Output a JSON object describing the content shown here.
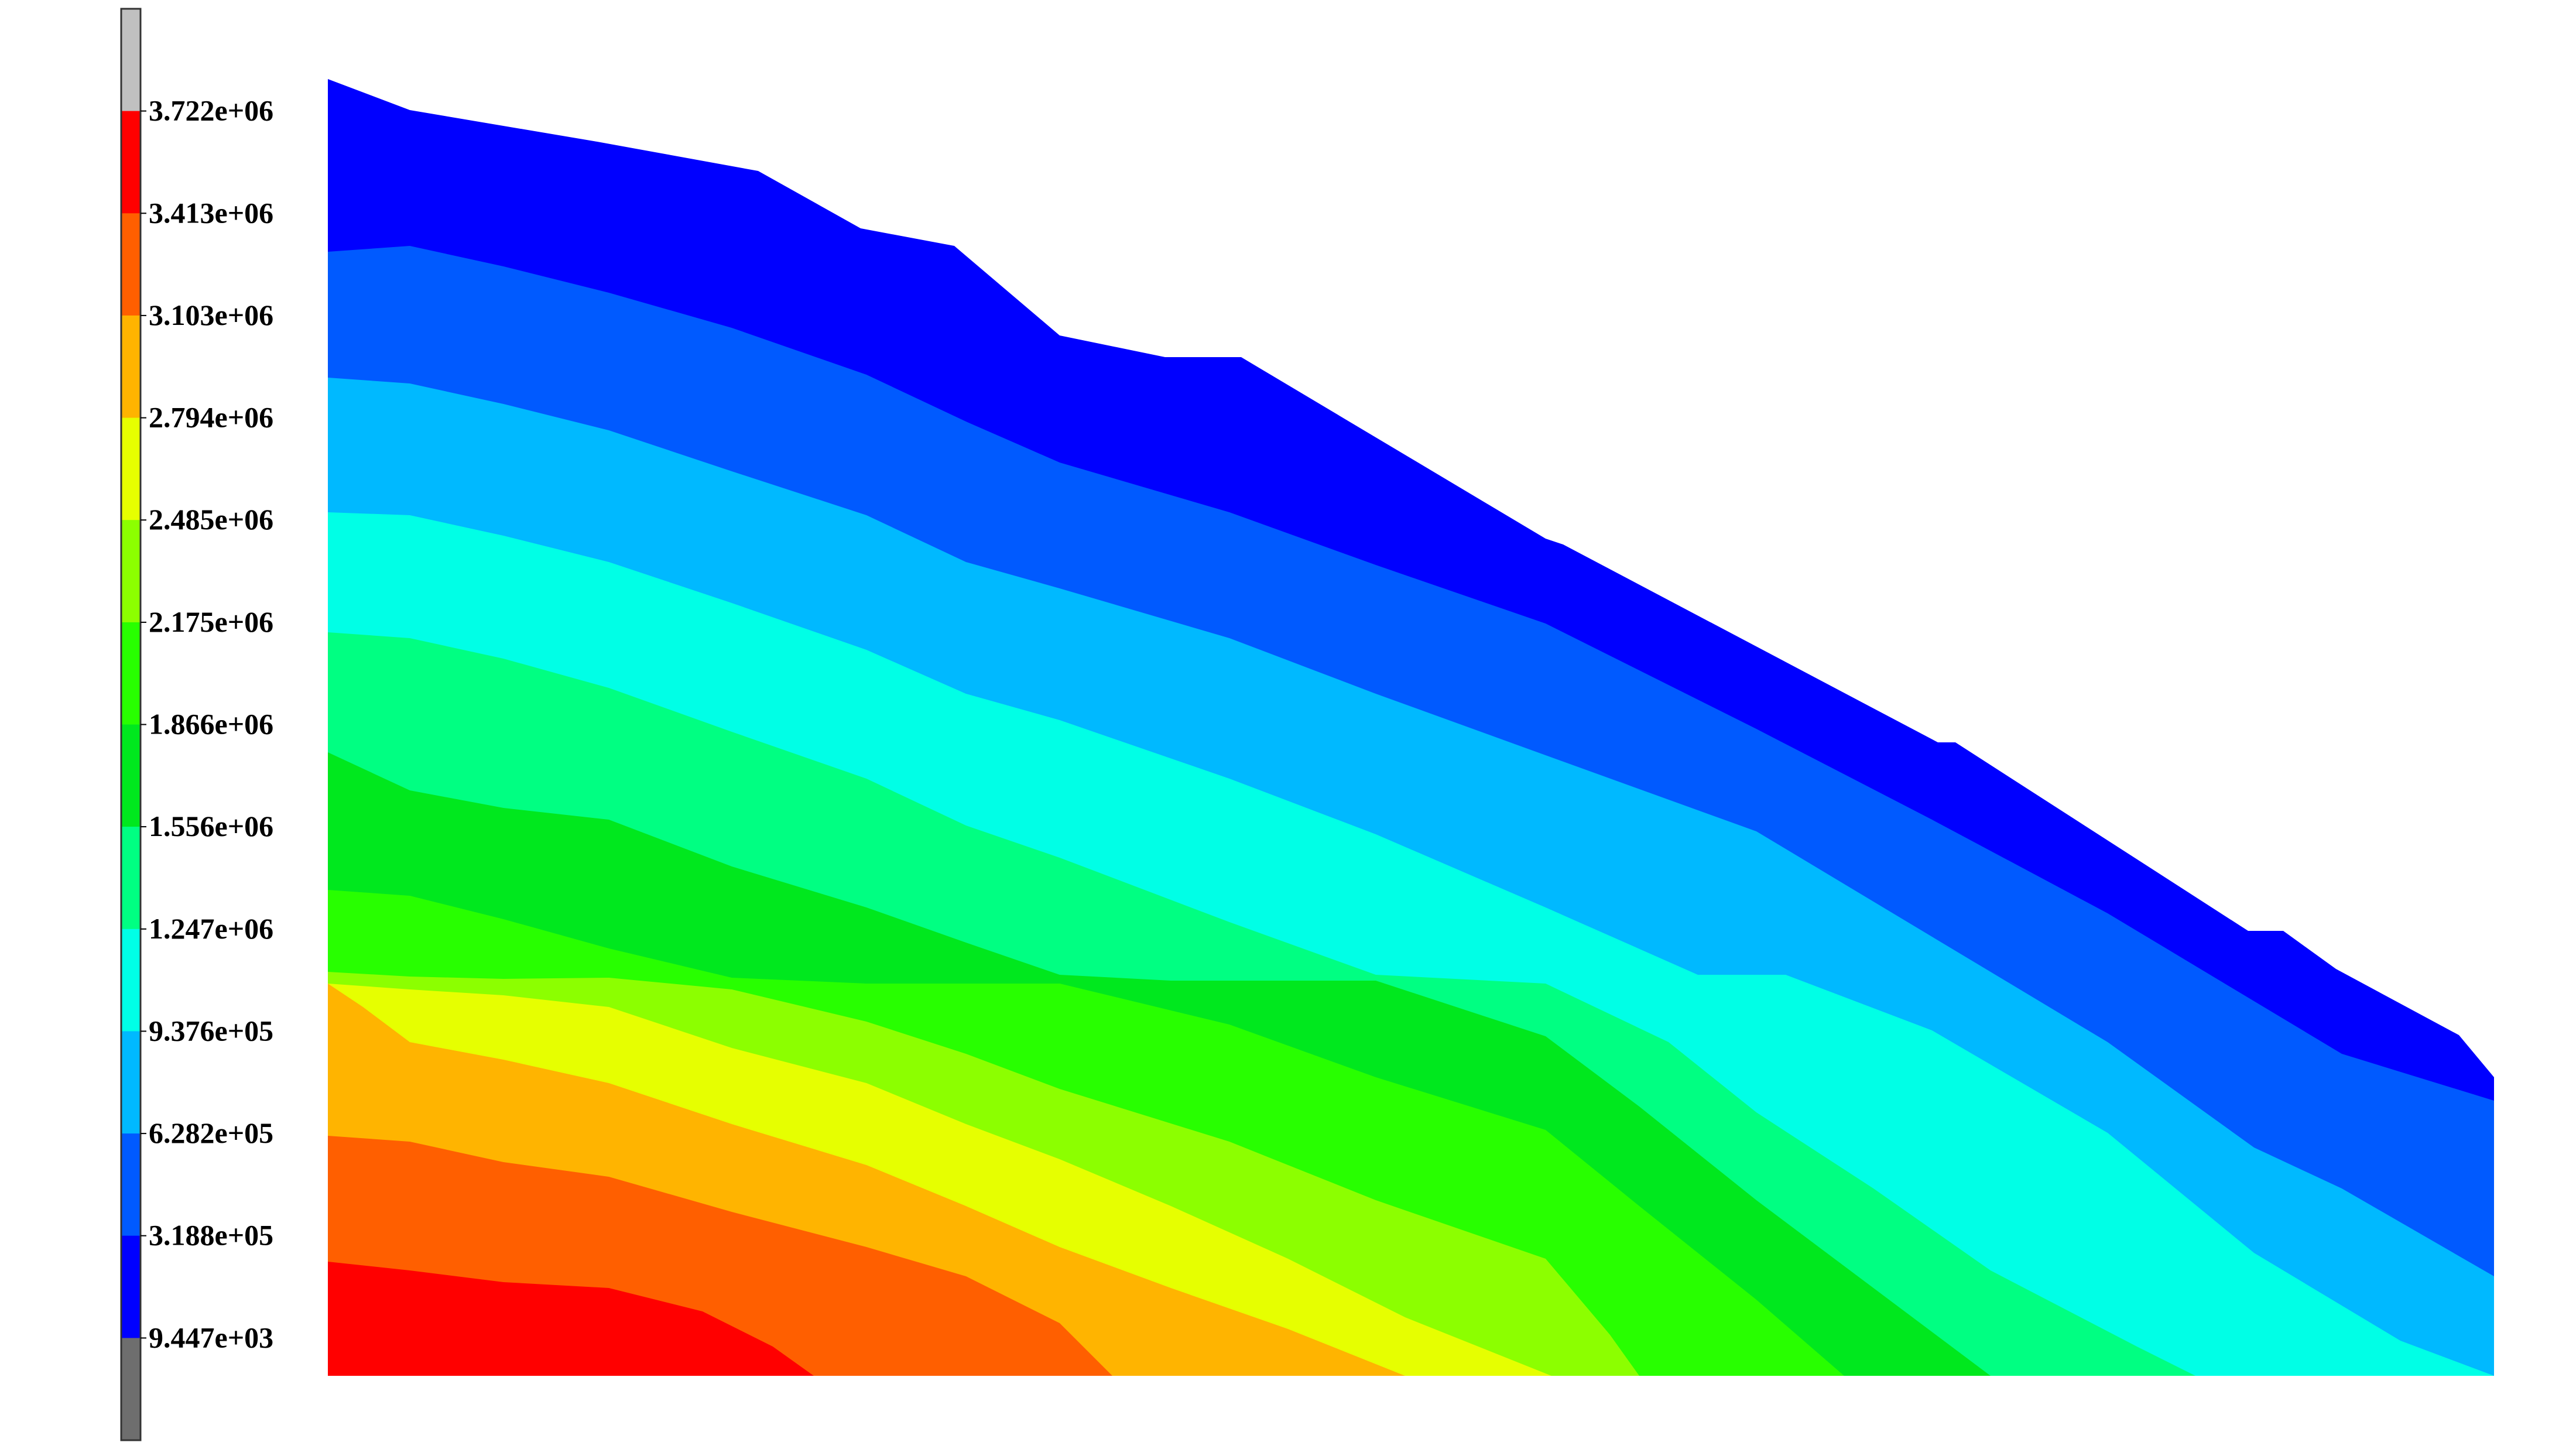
{
  "chart_data": {
    "type": "heatmap",
    "title": "",
    "xlabel": "",
    "ylabel": "",
    "grid": false,
    "legend_placement": "left",
    "colorbar": {
      "labels": [
        "3.722e+06",
        "3.413e+06",
        "3.103e+06",
        "2.794e+06",
        "2.485e+06",
        "2.175e+06",
        "1.866e+06",
        "1.556e+06",
        "1.247e+06",
        "9.376e+05",
        "6.282e+05",
        "3.188e+05",
        "9.447e+03"
      ],
      "values": [
        3722000,
        3413000,
        3103000,
        2794000,
        2485000,
        2175000,
        1866000,
        1556000,
        1247000,
        937600,
        628200,
        318800,
        9447
      ],
      "band_colors": [
        "#c0c0c0",
        "#ff0000",
        "#ff5f00",
        "#ffb400",
        "#e6ff00",
        "#8cff00",
        "#28ff00",
        "#00e81e",
        "#00ff82",
        "#00ffe6",
        "#00b9ff",
        "#005aff",
        "#0000ff",
        "#6e6e6e"
      ]
    },
    "levels_colors": {
      "l0": "#0000ff",
      "l1": "#005aff",
      "l2": "#00b9ff",
      "l3": "#00ffe6",
      "l4": "#00ff82",
      "l5": "#00e81e",
      "l6": "#28ff00",
      "l7": "#8cff00",
      "l8": "#e6ff00",
      "l9": "#ffb400",
      "l10": "#ff5f00",
      "l11": "#ff0000"
    }
  }
}
